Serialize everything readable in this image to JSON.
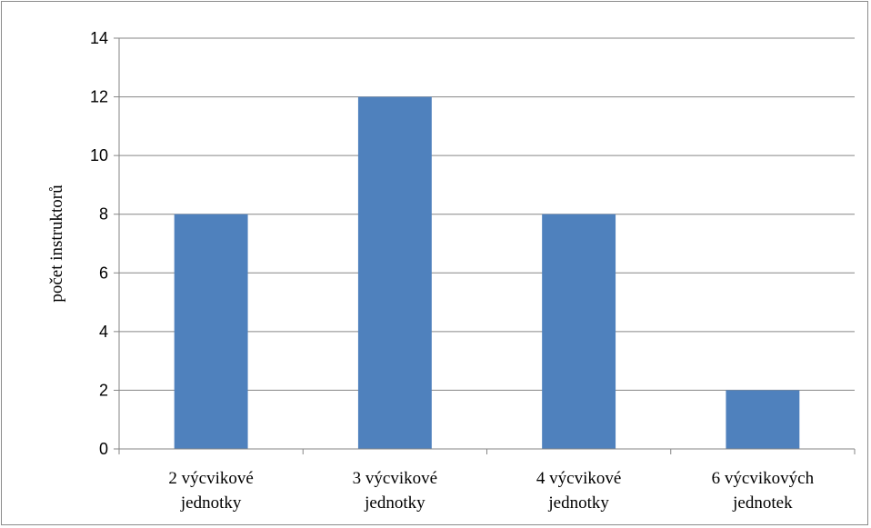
{
  "chart_data": {
    "type": "bar",
    "title": "",
    "xlabel": "",
    "ylabel": "počet instruktorů",
    "categories": [
      [
        "2 výcvikové",
        "jednotky"
      ],
      [
        "3 výcvikové",
        "jednotky"
      ],
      [
        "4 výcvikové",
        "jednotky"
      ],
      [
        "6 výcvikových",
        "jednotek"
      ]
    ],
    "values": [
      8,
      12,
      8,
      2
    ],
    "ylim": [
      0,
      14
    ],
    "yticks": [
      "0",
      "2",
      "4",
      "6",
      "8",
      "10",
      "12",
      "14"
    ],
    "grid": true,
    "legend": "none",
    "bar_color": "#4F81BD",
    "grid_color": "#868686"
  }
}
